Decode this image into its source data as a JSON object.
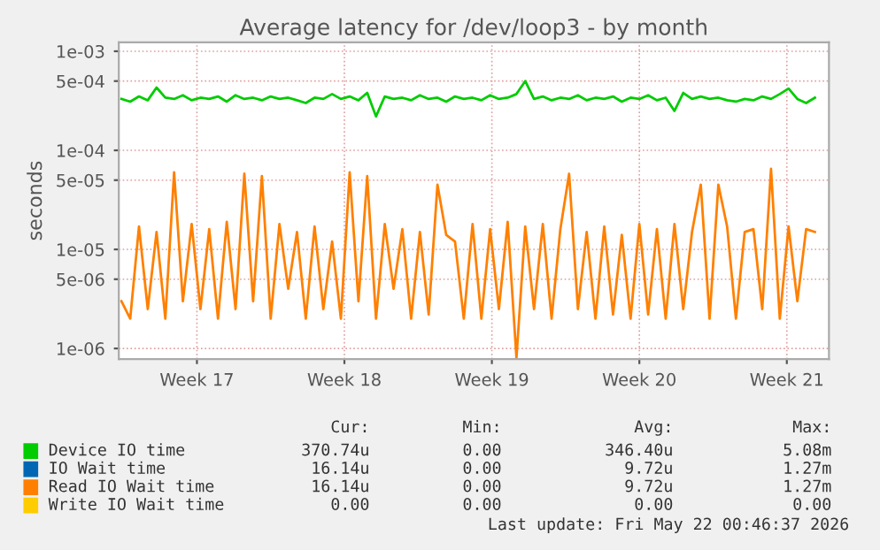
{
  "chart_data": {
    "type": "line",
    "title": "Average latency for /dev/loop3 - by month",
    "ylabel": "seconds",
    "log": true,
    "grid": true,
    "legend": "bottom",
    "marker": "none",
    "line_style": "solid",
    "ylim": [
      7.8e-07,
      0.00123
    ],
    "yticks": [
      {
        "value": 1e-06,
        "label": "1e-06"
      },
      {
        "value": 5e-06,
        "label": "5e-06"
      },
      {
        "value": 1e-05,
        "label": "1e-05"
      },
      {
        "value": 5e-05,
        "label": "5e-05"
      },
      {
        "value": 0.0001,
        "label": "1e-04"
      },
      {
        "value": 0.0005,
        "label": "5e-04"
      },
      {
        "value": 0.001,
        "label": "1e-03"
      }
    ],
    "xlim": [
      "2026-04-18T07:00",
      "2026-05-22T00:00"
    ],
    "xticks": [
      {
        "value": "2026-04-22",
        "label": "Week 17"
      },
      {
        "value": "2026-04-29",
        "label": "Week 18"
      },
      {
        "value": "2026-05-06",
        "label": "Week 19"
      },
      {
        "value": "2026-05-13",
        "label": "Week 20"
      },
      {
        "value": "2026-05-20",
        "label": "Week 21"
      }
    ],
    "x": [
      "2026-04-18T10:00",
      "2026-04-18T20:00",
      "2026-04-19T06:00",
      "2026-04-19T16:00",
      "2026-04-20T02:00",
      "2026-04-20T12:00",
      "2026-04-20T22:00",
      "2026-04-21T08:00",
      "2026-04-21T18:00",
      "2026-04-22T04:00",
      "2026-04-22T14:00",
      "2026-04-23T00:00",
      "2026-04-23T10:00",
      "2026-04-23T20:00",
      "2026-04-24T06:00",
      "2026-04-24T16:00",
      "2026-04-25T02:00",
      "2026-04-25T12:00",
      "2026-04-25T22:00",
      "2026-04-26T08:00",
      "2026-04-26T18:00",
      "2026-04-27T04:00",
      "2026-04-27T14:00",
      "2026-04-28T00:00",
      "2026-04-28T10:00",
      "2026-04-28T20:00",
      "2026-04-29T06:00",
      "2026-04-29T16:00",
      "2026-04-30T02:00",
      "2026-04-30T12:00",
      "2026-04-30T22:00",
      "2026-05-01T08:00",
      "2026-05-01T18:00",
      "2026-05-02T04:00",
      "2026-05-02T14:00",
      "2026-05-03T00:00",
      "2026-05-03T10:00",
      "2026-05-03T20:00",
      "2026-05-04T06:00",
      "2026-05-04T16:00",
      "2026-05-05T02:00",
      "2026-05-05T12:00",
      "2026-05-05T22:00",
      "2026-05-06T08:00",
      "2026-05-06T18:00",
      "2026-05-07T04:00",
      "2026-05-07T14:00",
      "2026-05-08T00:00",
      "2026-05-08T10:00",
      "2026-05-08T20:00",
      "2026-05-09T06:00",
      "2026-05-09T16:00",
      "2026-05-10T02:00",
      "2026-05-10T12:00",
      "2026-05-10T22:00",
      "2026-05-11T08:00",
      "2026-05-11T18:00",
      "2026-05-12T04:00",
      "2026-05-12T14:00",
      "2026-05-13T00:00",
      "2026-05-13T10:00",
      "2026-05-13T20:00",
      "2026-05-14T06:00",
      "2026-05-14T16:00",
      "2026-05-15T02:00",
      "2026-05-15T12:00",
      "2026-05-15T22:00",
      "2026-05-16T08:00",
      "2026-05-16T18:00",
      "2026-05-17T04:00",
      "2026-05-17T14:00",
      "2026-05-18T00:00",
      "2026-05-18T10:00",
      "2026-05-18T20:00",
      "2026-05-19T06:00",
      "2026-05-19T16:00",
      "2026-05-20T02:00",
      "2026-05-20T12:00",
      "2026-05-20T22:00",
      "2026-05-21T08:00"
    ],
    "series": [
      {
        "name": "Device IO time",
        "color": "#00cc00",
        "values": [
          0.00033,
          0.00031,
          0.00035,
          0.00032,
          0.00043,
          0.00034,
          0.00033,
          0.00036,
          0.00032,
          0.00034,
          0.00033,
          0.00035,
          0.00031,
          0.00036,
          0.00033,
          0.00034,
          0.00032,
          0.00035,
          0.00033,
          0.00034,
          0.00032,
          0.0003,
          0.00034,
          0.00033,
          0.00037,
          0.00033,
          0.00035,
          0.00032,
          0.00038,
          0.00022,
          0.00035,
          0.00033,
          0.00034,
          0.00032,
          0.00036,
          0.00033,
          0.00034,
          0.00031,
          0.00035,
          0.00033,
          0.00034,
          0.00032,
          0.00036,
          0.00033,
          0.00034,
          0.00037,
          0.0005,
          0.00033,
          0.00035,
          0.00032,
          0.00034,
          0.00033,
          0.00036,
          0.00032,
          0.00034,
          0.00033,
          0.00035,
          0.00031,
          0.00034,
          0.00033,
          0.00036,
          0.00032,
          0.00034,
          0.00025,
          0.00038,
          0.00033,
          0.00035,
          0.00033,
          0.00034,
          0.00032,
          0.00031,
          0.00033,
          0.00032,
          0.00035,
          0.00033,
          0.00037,
          0.00042,
          0.00033,
          0.0003,
          0.00034
        ]
      },
      {
        "name": "IO Wait time",
        "color": "#0066b3",
        "values": [
          null,
          null,
          null,
          null,
          null,
          null,
          null,
          null,
          null,
          null,
          null,
          null,
          null,
          null,
          null,
          null,
          null,
          null,
          null,
          null,
          null,
          null,
          null,
          null,
          null,
          null,
          null,
          null,
          null,
          null,
          null,
          null,
          null,
          null,
          null,
          null,
          null,
          null,
          null,
          null,
          null,
          null,
          null,
          null,
          null,
          null,
          null,
          null,
          null,
          null,
          null,
          null,
          null,
          null,
          null,
          null,
          null,
          null,
          null,
          null,
          null,
          null,
          null,
          null,
          null,
          null,
          null,
          null,
          null,
          null,
          null,
          null,
          null,
          null,
          null,
          null,
          null,
          null,
          null,
          null
        ]
      },
      {
        "name": "Read IO Wait time",
        "color": "#ff8000",
        "values": [
          3e-06,
          2e-06,
          1.7e-05,
          2.5e-06,
          1.5e-05,
          2e-06,
          6e-05,
          3e-06,
          1.8e-05,
          2.5e-06,
          1.6e-05,
          2e-06,
          1.9e-05,
          2.5e-06,
          5.8e-05,
          3e-06,
          5.5e-05,
          2e-06,
          1.8e-05,
          4e-06,
          1.5e-05,
          2e-06,
          1.7e-05,
          2.5e-06,
          1.2e-05,
          2e-06,
          6e-05,
          3e-06,
          5.5e-05,
          2e-06,
          1.8e-05,
          4e-06,
          1.6e-05,
          2e-06,
          1.5e-05,
          2.2e-06,
          4.5e-05,
          1.4e-05,
          1.2e-05,
          2e-06,
          1.8e-05,
          2e-06,
          1.6e-05,
          2.5e-06,
          1.9e-05,
          8e-07,
          1.7e-05,
          2.5e-06,
          1.8e-05,
          2e-06,
          1.6e-05,
          5.8e-05,
          2.5e-06,
          1.5e-05,
          2e-06,
          1.7e-05,
          2.2e-06,
          1.4e-05,
          2e-06,
          1.8e-05,
          2.2e-06,
          1.6e-05,
          2e-06,
          1.8e-05,
          2.5e-06,
          1.5e-05,
          4.5e-05,
          2e-06,
          4.5e-05,
          1.7e-05,
          2e-06,
          1.5e-05,
          1.6e-05,
          2.5e-06,
          6.5e-05,
          2e-06,
          1.7e-05,
          3e-06,
          1.6e-05,
          1.5e-05
        ]
      },
      {
        "name": "Write IO Wait time",
        "color": "#ffcc00",
        "values": [
          null,
          null,
          null,
          null,
          null,
          null,
          null,
          null,
          null,
          null,
          null,
          null,
          null,
          null,
          null,
          null,
          null,
          null,
          null,
          null,
          null,
          null,
          null,
          null,
          null,
          null,
          null,
          null,
          null,
          null,
          null,
          null,
          null,
          null,
          null,
          null,
          null,
          null,
          null,
          null,
          null,
          null,
          null,
          null,
          null,
          null,
          null,
          null,
          null,
          null,
          null,
          null,
          null,
          null,
          null,
          null,
          null,
          null,
          null,
          null,
          null,
          null,
          null,
          null,
          null,
          null,
          null,
          null,
          null,
          null,
          null,
          null,
          null,
          null,
          null,
          null,
          null,
          null,
          null,
          null
        ]
      }
    ],
    "annotations": [
      "Cur:",
      "Min:",
      "Avg:",
      "Max:",
      "370.74u",
      "0.00",
      "346.40u",
      "5.08m",
      "16.14u",
      "0.00",
      "9.72u",
      "1.27m",
      "16.14u",
      "0.00",
      "9.72u",
      "1.27m",
      "0.00",
      "0.00",
      "0.00",
      "0.00",
      "Last update: Fri May 22 00:46:37 2026"
    ]
  }
}
